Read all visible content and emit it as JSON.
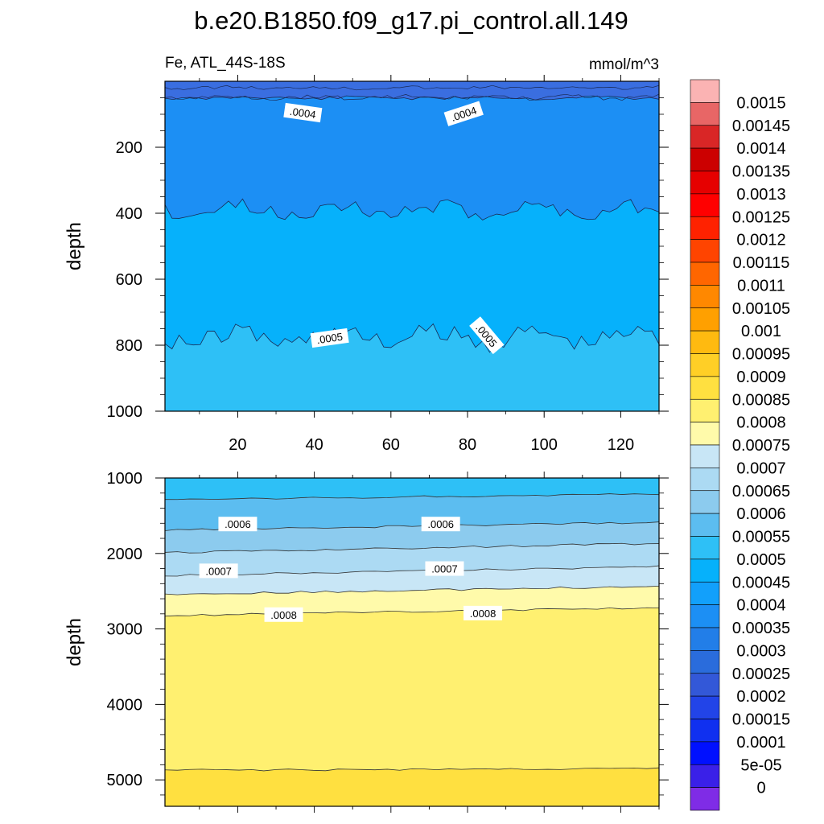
{
  "chart_data": {
    "type": "heatmap",
    "title": "b.e20.B1850.f09_g17.pi_control.all.149",
    "variable_label": "Fe, ATL_44S-18S",
    "units": "mmol/m^3",
    "colorbar": {
      "levels": [
        "0.0015",
        "0.00145",
        "0.0014",
        "0.00135",
        "0.0013",
        "0.00125",
        "0.0012",
        "0.00115",
        "0.0011",
        "0.00105",
        "0.001",
        "0.00095",
        "0.0009",
        "0.00085",
        "0.0008",
        "0.00075",
        "0.0007",
        "0.00065",
        "0.0006",
        "0.00055",
        "0.0005",
        "0.00045",
        "0.0004",
        "0.00035",
        "0.0003",
        "0.00025",
        "0.0002",
        "0.00015",
        "0.0001",
        "5e-05",
        "0"
      ],
      "colors": [
        "#fbb3b3",
        "#e86666",
        "#d92626",
        "#cc0000",
        "#e60000",
        "#ff0000",
        "#ff2200",
        "#ff4400",
        "#ff6600",
        "#ff8800",
        "#ffa000",
        "#ffba10",
        "#ffcf26",
        "#ffe040",
        "#fff070",
        "#fffaaa",
        "#c8e6f6",
        "#acdaf3",
        "#8ccbee",
        "#5cbdf0",
        "#2ec0f6",
        "#06b1fb",
        "#12a0fb",
        "#1c8ff4",
        "#227ee8",
        "#2a6cdc",
        "#3358d8",
        "#2244e8",
        "#1030f0",
        "#0010ff",
        "#3a20e8",
        "#7f2ce6"
      ]
    },
    "upper_panel": {
      "ylabel": "depth",
      "xlim": [
        1,
        130
      ],
      "ylim": [
        0,
        1000
      ],
      "x_ticks": [
        "20",
        "40",
        "60",
        "80",
        "100",
        "120"
      ],
      "x_tick_values": [
        20,
        40,
        60,
        80,
        100,
        120
      ],
      "y_ticks": [
        "200",
        "400",
        "600",
        "800",
        "1000"
      ],
      "y_tick_values": [
        200,
        400,
        600,
        800,
        1000
      ],
      "contour_labels": [
        {
          "text": ".0004",
          "x": 37,
          "y": 95
        },
        {
          "text": ".0004",
          "x": 79,
          "y": 98
        },
        {
          "text": ".0005",
          "x": 44,
          "y": 778
        },
        {
          "text": ".0005",
          "x": 85,
          "y": 770
        }
      ],
      "bands": [
        {
          "color": "#3a6ee0",
          "top": 0,
          "bottom": 50,
          "mean_depth_top": 0,
          "mean_depth_bottom": 50
        },
        {
          "color": "#1c8ff4",
          "top": 50,
          "bottom": 400
        },
        {
          "color": "#06b1fb",
          "top": 400,
          "bottom": 790
        },
        {
          "color": "#2ec0f6",
          "top": 790,
          "bottom": 1000
        }
      ]
    },
    "lower_panel": {
      "ylabel": "depth",
      "ylim": [
        1000,
        5350
      ],
      "y_ticks": [
        "1000",
        "2000",
        "3000",
        "4000",
        "5000"
      ],
      "y_tick_values": [
        1000,
        2000,
        3000,
        4000,
        5000
      ],
      "contour_labels": [
        {
          "text": ".0006",
          "x": 20,
          "y": 1610
        },
        {
          "text": ".0006",
          "x": 73,
          "y": 1610
        },
        {
          "text": ".0007",
          "x": 15,
          "y": 2230
        },
        {
          "text": ".0007",
          "x": 74,
          "y": 2200
        },
        {
          "text": ".0008",
          "x": 32,
          "y": 2810
        },
        {
          "text": ".0008",
          "x": 84,
          "y": 2790
        }
      ],
      "contour_depths": [
        1250,
        1650,
        1950,
        2250,
        2500,
        2780,
        4830
      ],
      "fill_colors": [
        "#2ec0f6",
        "#5cbdf0",
        "#8ccbee",
        "#acdaf3",
        "#c8e6f6",
        "#fffaaa",
        "#fff070",
        "#ffe040"
      ]
    }
  }
}
